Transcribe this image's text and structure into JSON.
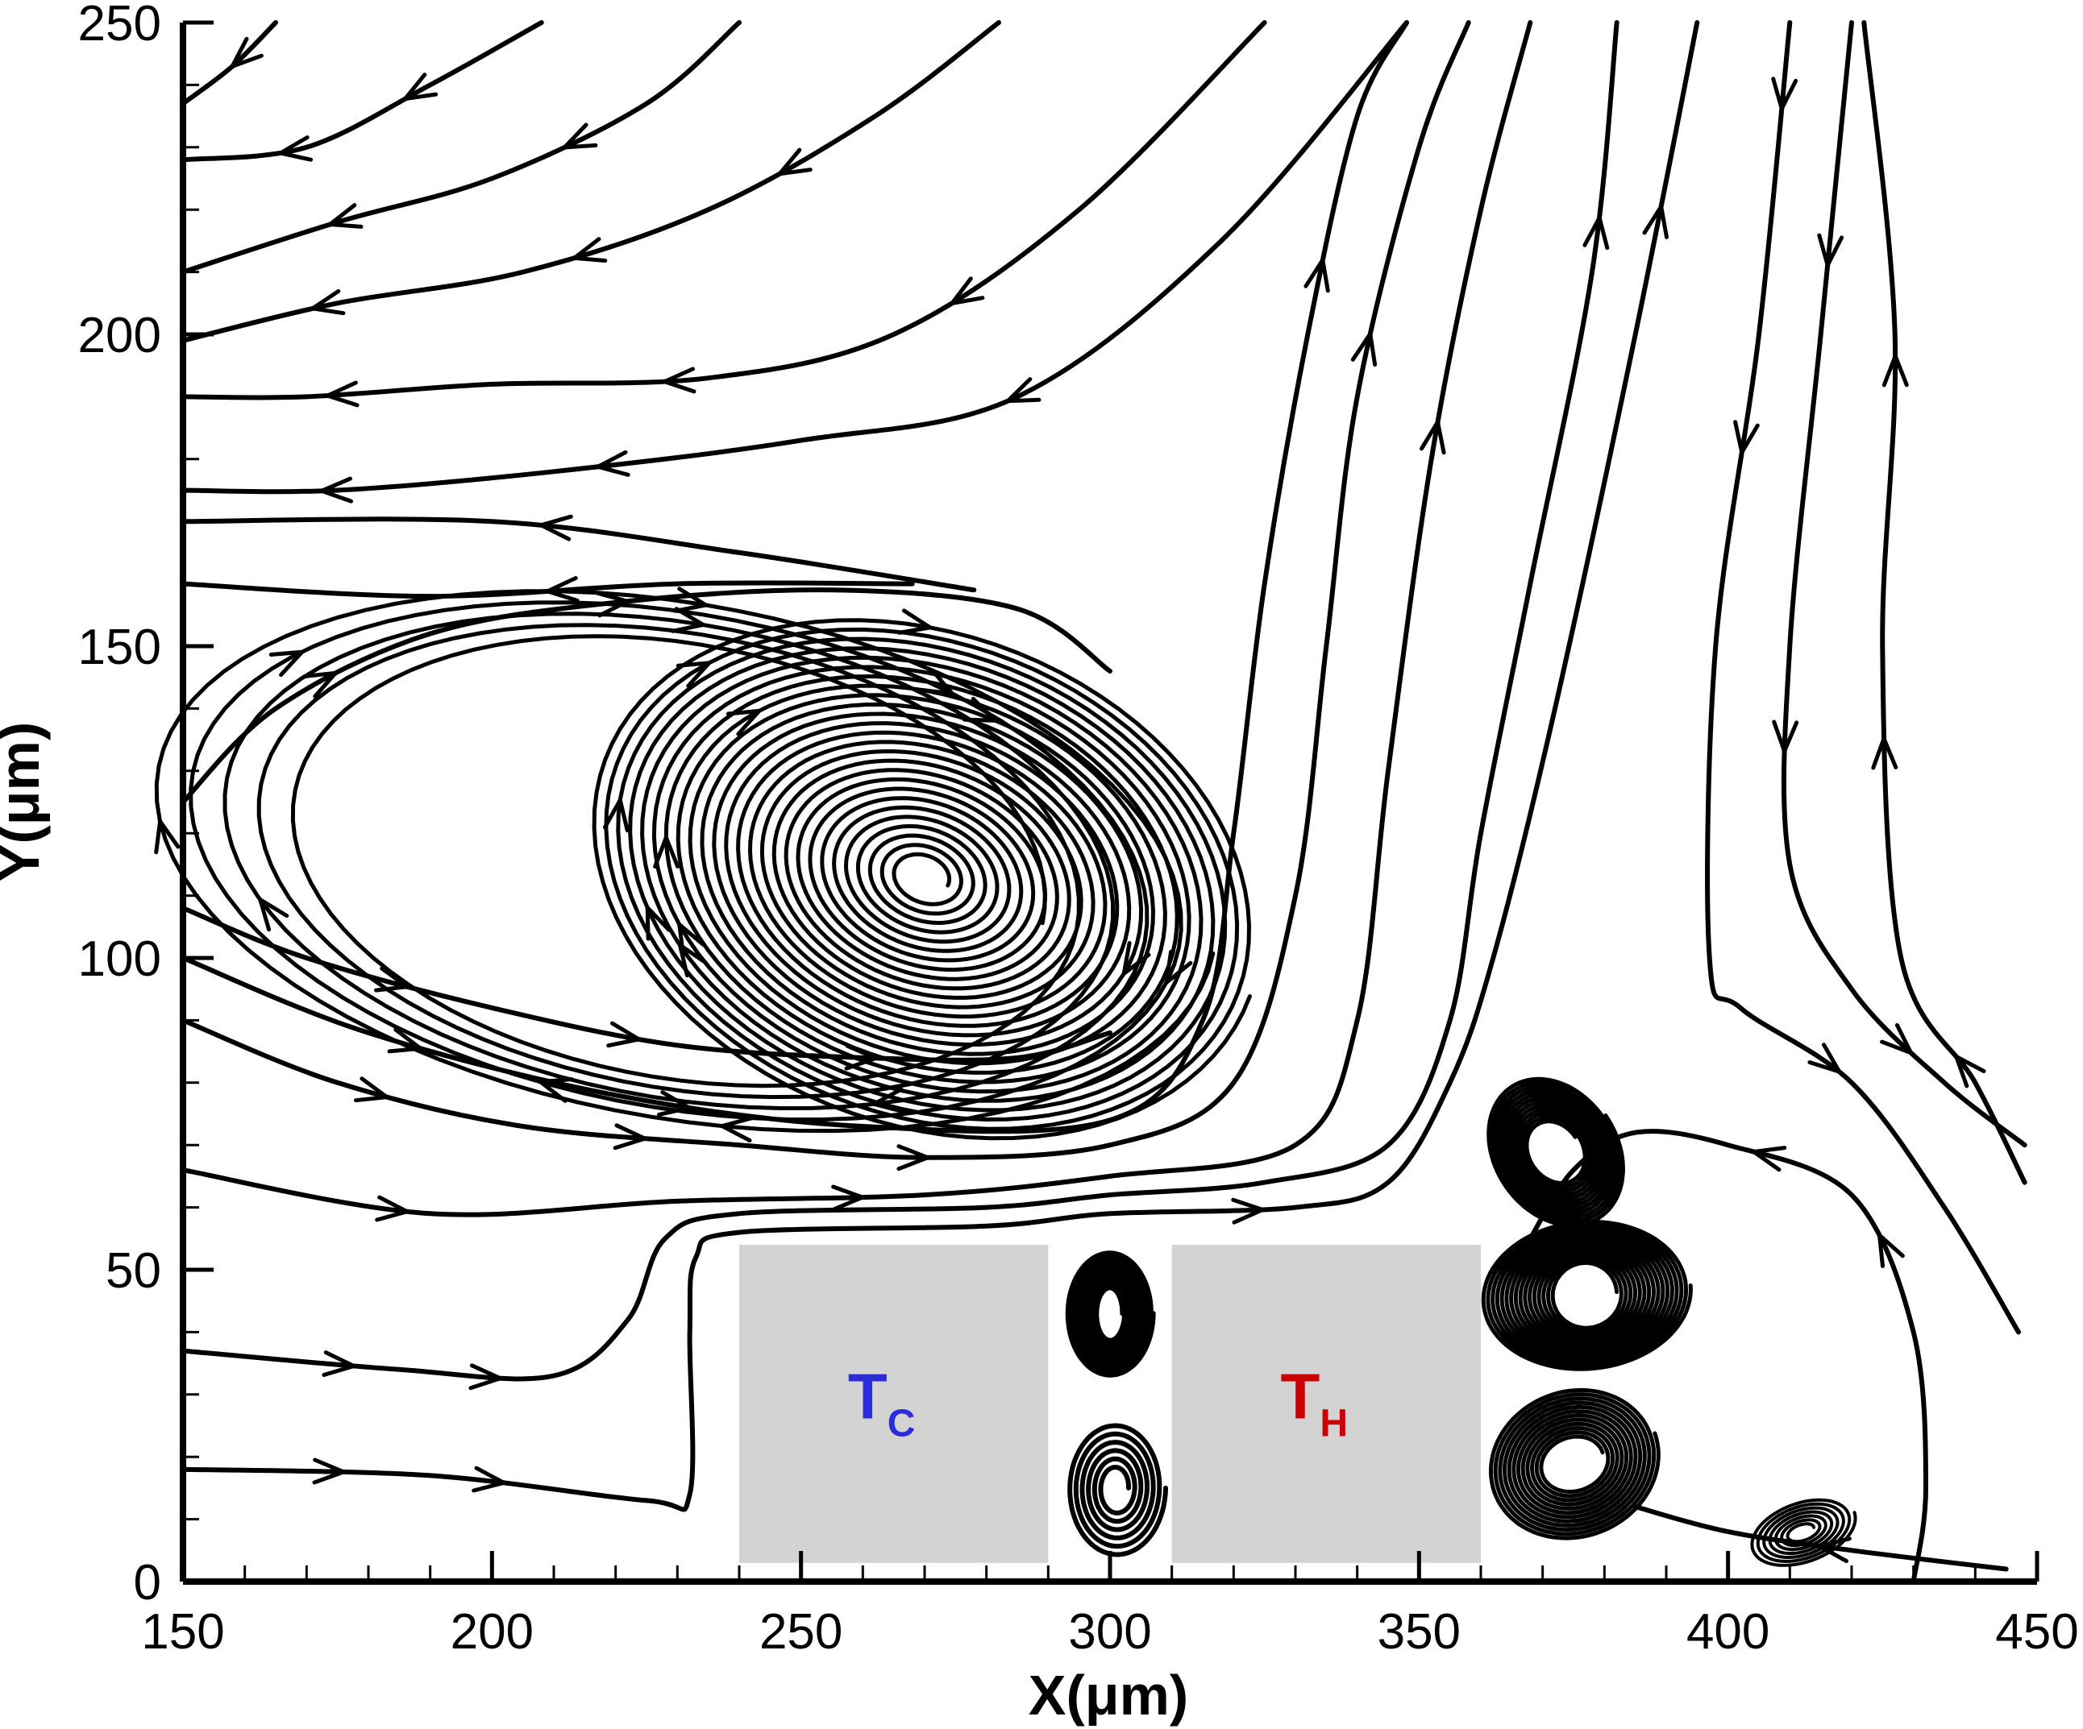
{
  "chart_data": {
    "type": "streamline",
    "xlabel": "X(μm)",
    "ylabel": "Y(μm)",
    "xlim": [
      150,
      450
    ],
    "ylim": [
      0,
      250
    ],
    "x_ticks": [
      150,
      200,
      250,
      300,
      350,
      400,
      450
    ],
    "y_ticks": [
      0,
      50,
      100,
      150,
      200,
      250
    ],
    "x_minor_step": 10,
    "y_minor_step": 10,
    "grid": false,
    "blocks": [
      {
        "name": "cold-block",
        "label_main": "T",
        "label_sub": "C",
        "label_color": "#2b2bdc",
        "fill": "#d3d3d3",
        "x0": 240,
        "x1": 290,
        "y0": 3,
        "y1": 54
      },
      {
        "name": "hot-block",
        "label_main": "T",
        "label_sub": "H",
        "label_color": "#cc0000",
        "fill": "#d3d3d3",
        "x0": 310,
        "x1": 360,
        "y0": 3,
        "y1": 54
      }
    ],
    "streamlines": [
      {
        "points": [
          [
            150,
            18
          ],
          [
            190,
            17
          ],
          [
            225,
            13
          ],
          [
            232,
            14
          ],
          [
            232,
            40
          ],
          [
            233,
            52
          ],
          [
            240,
            56
          ],
          [
            280,
            57
          ],
          [
            300,
            59
          ],
          [
            330,
            60
          ],
          [
            345,
            64
          ],
          [
            355,
            80
          ],
          [
            362,
            100
          ],
          [
            372,
            140
          ],
          [
            385,
            200
          ],
          [
            395,
            250
          ]
        ],
        "arrows": [
          0.06,
          0.12,
          0.5,
          0.93
        ],
        "dir": "forward"
      },
      {
        "points": [
          [
            150,
            37
          ],
          [
            185,
            34
          ],
          [
            210,
            33
          ],
          [
            222,
            42
          ],
          [
            228,
            55
          ],
          [
            240,
            59
          ],
          [
            280,
            60
          ],
          [
            300,
            62
          ],
          [
            325,
            64
          ],
          [
            345,
            70
          ],
          [
            355,
            90
          ],
          [
            360,
            120
          ],
          [
            368,
            160
          ],
          [
            378,
            210
          ],
          [
            382,
            250
          ]
        ],
        "arrows": [
          0.07,
          0.13,
          0.92
        ],
        "dir": "forward"
      },
      {
        "points": [
          [
            150,
            66
          ],
          [
            190,
            59
          ],
          [
            230,
            61
          ],
          [
            270,
            62
          ],
          [
            300,
            65
          ],
          [
            330,
            70
          ],
          [
            340,
            90
          ],
          [
            345,
            130
          ],
          [
            352,
            180
          ],
          [
            360,
            220
          ],
          [
            368,
            250
          ]
        ],
        "arrows": [
          0.1,
          0.3,
          0.82
        ],
        "dir": "forward"
      },
      {
        "points": [
          [
            150,
            90
          ],
          [
            175,
            80
          ],
          [
            205,
            73
          ],
          [
            240,
            70
          ],
          [
            270,
            68
          ],
          [
            300,
            70
          ],
          [
            320,
            80
          ],
          [
            330,
            110
          ],
          [
            335,
            150
          ],
          [
            340,
            190
          ],
          [
            350,
            230
          ],
          [
            358,
            250
          ]
        ],
        "arrows": [
          0.1,
          0.22,
          0.35,
          0.85
        ],
        "dir": "forward"
      },
      {
        "points": [
          [
            150,
            100
          ],
          [
            180,
            88
          ],
          [
            220,
            78
          ],
          [
            260,
            73
          ],
          [
            300,
            74
          ],
          [
            315,
            90
          ],
          [
            320,
            120
          ],
          [
            325,
            160
          ],
          [
            332,
            200
          ],
          [
            340,
            235
          ],
          [
            348,
            250
          ]
        ],
        "arrows": [
          0.12,
          0.25,
          0.88
        ],
        "dir": "forward"
      },
      {
        "points": [
          [
            348,
            250
          ],
          [
            318,
            215
          ],
          [
            285,
            190
          ],
          [
            250,
            183
          ],
          [
            210,
            178
          ],
          [
            175,
            175
          ],
          [
            150,
            175
          ]
        ],
        "arrows": [
          0.4,
          0.7,
          0.9
        ],
        "dir": "forward"
      },
      {
        "points": [
          [
            325,
            250
          ],
          [
            295,
            220
          ],
          [
            265,
            200
          ],
          [
            235,
            193
          ],
          [
            200,
            192
          ],
          [
            170,
            190
          ],
          [
            150,
            190
          ]
        ],
        "arrows": [
          0.35,
          0.6,
          0.88
        ],
        "dir": "forward"
      },
      {
        "points": [
          [
            282,
            250
          ],
          [
            262,
            235
          ],
          [
            235,
            220
          ],
          [
            205,
            210
          ],
          [
            175,
            205
          ],
          [
            150,
            199
          ]
        ],
        "arrows": [
          0.3,
          0.55,
          0.85
        ],
        "dir": "forward"
      },
      {
        "points": [
          [
            240,
            250
          ],
          [
            225,
            237
          ],
          [
            200,
            225
          ],
          [
            175,
            218
          ],
          [
            150,
            210
          ]
        ],
        "arrows": [
          0.35,
          0.75
        ],
        "dir": "forward"
      },
      {
        "points": [
          [
            208,
            250
          ],
          [
            190,
            240
          ],
          [
            170,
            230
          ],
          [
            150,
            228
          ]
        ],
        "arrows": [
          0.4,
          0.75
        ],
        "dir": "forward"
      },
      {
        "points": [
          [
            165,
            250
          ],
          [
            158,
            243
          ],
          [
            150,
            237
          ]
        ],
        "arrows": [
          0.5
        ],
        "dir": "forward"
      },
      {
        "points": [
          [
            268,
            160
          ],
          [
            230,
            160
          ],
          [
            190,
            158
          ],
          [
            150,
            160
          ]
        ],
        "arrows": [
          0.5
        ],
        "dir": "forward"
      },
      {
        "points": [
          [
            278,
            159
          ],
          [
            240,
            165
          ],
          [
            200,
            170
          ],
          [
            150,
            170
          ]
        ],
        "arrows": [
          0.55
        ],
        "dir": "forward"
      },
      {
        "points": [
          [
            410,
            250
          ],
          [
            405,
            200
          ],
          [
            398,
            150
          ],
          [
            397,
            100
          ],
          [
            402,
            92
          ],
          [
            420,
            80
          ],
          [
            435,
            60
          ],
          [
            447,
            40
          ]
        ],
        "arrows": [
          0.06,
          0.3,
          0.78
        ],
        "dir": "forward"
      },
      {
        "points": [
          [
            420,
            250
          ],
          [
            415,
            200
          ],
          [
            410,
            150
          ],
          [
            410,
            115
          ],
          [
            420,
            95
          ],
          [
            435,
            80
          ],
          [
            448,
            70
          ]
        ],
        "arrows": [
          0.2,
          0.6,
          0.88
        ],
        "dir": "forward"
      },
      {
        "points": [
          [
            448,
            64
          ],
          [
            440,
            80
          ],
          [
            428,
            100
          ],
          [
            425,
            150
          ],
          [
            427,
            200
          ],
          [
            422,
            250
          ]
        ],
        "arrows": [
          0.12,
          0.4,
          0.72
        ],
        "dir": "forward"
      },
      {
        "points": [
          [
            430,
            0
          ],
          [
            432,
            15
          ],
          [
            430,
            40
          ],
          [
            420,
            62
          ],
          [
            400,
            70
          ],
          [
            385,
            72
          ],
          [
            375,
            66
          ],
          [
            368,
            55
          ]
        ],
        "arrows": [
          0.45,
          0.65
        ],
        "dir": "forward"
      },
      {
        "points": [
          [
            445,
            2
          ],
          [
            420,
            5
          ],
          [
            400,
            8
          ],
          [
            385,
            12
          ]
        ],
        "arrows": [
          0.5
        ],
        "dir": "forward"
      },
      {
        "points": [
          [
            150,
            125
          ],
          [
            165,
            140
          ],
          [
            190,
            152
          ],
          [
            220,
            157
          ],
          [
            255,
            159
          ],
          [
            285,
            156
          ],
          [
            300,
            146
          ]
        ],
        "arrows": [
          0.2,
          0.5
        ],
        "dir": "forward"
      },
      {
        "points": [
          [
            150,
            108
          ],
          [
            170,
            100
          ],
          [
            200,
            92
          ],
          [
            230,
            86
          ],
          [
            260,
            84
          ],
          [
            285,
            84
          ],
          [
            300,
            88
          ]
        ],
        "arrows": [
          0.25,
          0.5,
          0.75
        ],
        "dir": "forward"
      }
    ],
    "vortices": [
      {
        "cx": 270,
        "cy": 113,
        "rx0": 4,
        "ry0": 3,
        "rx_max": 56,
        "ry_max": 40,
        "rot": -20,
        "turns": 26,
        "width": 5,
        "arrows": true
      },
      {
        "cx": 230,
        "cy": 116,
        "rx0": 60,
        "ry0": 34,
        "rx_max": 88,
        "ry_max": 42,
        "rot": -10,
        "turns": 5,
        "width": 5,
        "arrows": true
      },
      {
        "cx": 300,
        "cy": 43,
        "rx0": 2,
        "ry0": 4,
        "rx_max": 7,
        "ry_max": 10,
        "rot": 0,
        "turns": 14,
        "width": 6,
        "arrows": false
      },
      {
        "cx": 301,
        "cy": 15,
        "rx0": 2,
        "ry0": 3,
        "rx_max": 8,
        "ry_max": 11,
        "rot": 0,
        "turns": 6,
        "width": 6,
        "arrows": false
      },
      {
        "cx": 372,
        "cy": 69,
        "rx0": 4,
        "ry0": 5,
        "rx_max": 10,
        "ry_max": 13,
        "rot": 35,
        "turns": 12,
        "width": 5,
        "arrows": false
      },
      {
        "cx": 377,
        "cy": 46,
        "rx0": 5,
        "ry0": 5,
        "rx_max": 17,
        "ry_max": 12,
        "rot": 5,
        "turns": 16,
        "width": 5,
        "arrows": false
      },
      {
        "cx": 375,
        "cy": 19,
        "rx0": 5,
        "ry0": 4,
        "rx_max": 14,
        "ry_max": 12,
        "rot": 20,
        "turns": 12,
        "width": 5,
        "arrows": false
      },
      {
        "cx": 412,
        "cy": 8,
        "rx0": 2,
        "ry0": 1,
        "rx_max": 9,
        "ry_max": 5,
        "rot": 20,
        "turns": 7,
        "width": 4,
        "arrows": false
      }
    ]
  }
}
